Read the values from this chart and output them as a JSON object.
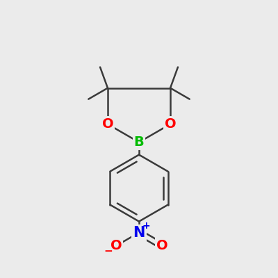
{
  "background_color": "#ebebeb",
  "bond_color": "#3a3a3a",
  "bond_width": 1.8,
  "atom_colors": {
    "B": "#00bb00",
    "O": "#ff0000",
    "N": "#0000ee",
    "C": "#3a3a3a"
  },
  "font_size_atom": 14,
  "font_size_charge": 10,
  "figsize": [
    4.0,
    4.0
  ],
  "dpi": 100
}
